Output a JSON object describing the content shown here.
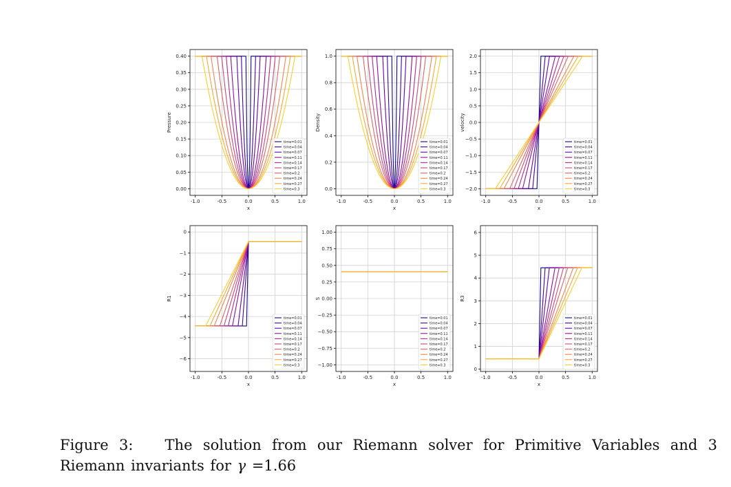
{
  "figure": {
    "legend_labels": [
      "time=0.01",
      "time=0.04",
      "time=0.07",
      "time=0.11",
      "time=0.14",
      "time=0.17",
      "time=0.2",
      "time=0.24",
      "time=0.27",
      "time=0.3"
    ],
    "times": [
      0.01,
      0.04,
      0.07,
      0.11,
      0.14,
      0.17,
      0.2,
      0.24,
      0.27,
      0.3
    ],
    "series_colors": [
      "#0d0887",
      "#41049d",
      "#6a00a8",
      "#8f0da4",
      "#b12a90",
      "#cc4778",
      "#e16462",
      "#f2844b",
      "#fca636",
      "#fcce25"
    ]
  },
  "chart_data": [
    {
      "type": "line",
      "id": "pressure",
      "xlabel": "x",
      "ylabel": "Pressure",
      "xlim": [
        -1.1,
        1.1
      ],
      "ylim": [
        -0.02,
        0.42
      ],
      "xticks": [
        "-1.0",
        "-0.5",
        "0.0",
        "0.5",
        "1.0"
      ],
      "yticks": [
        "0.00",
        "0.05",
        "0.10",
        "0.15",
        "0.20",
        "0.25",
        "0.30",
        "0.35",
        "0.40"
      ],
      "series_shape": "well",
      "low": 0.0,
      "high": 0.4,
      "grid": true,
      "legend": "lower-right"
    },
    {
      "type": "line",
      "id": "density",
      "xlabel": "x",
      "ylabel": "Density",
      "xlim": [
        -1.1,
        1.1
      ],
      "ylim": [
        -0.05,
        1.05
      ],
      "xticks": [
        "-1.0",
        "-0.5",
        "0.0",
        "0.5",
        "1.0"
      ],
      "yticks": [
        "0.0",
        "0.2",
        "0.4",
        "0.6",
        "0.8",
        "1.0"
      ],
      "series_shape": "well",
      "low": 0.0,
      "high": 1.0,
      "grid": true,
      "legend": "lower-right"
    },
    {
      "type": "line",
      "id": "velocity",
      "xlabel": "x",
      "ylabel": "velocity",
      "xlim": [
        -1.1,
        1.1
      ],
      "ylim": [
        -2.2,
        2.2
      ],
      "xticks": [
        "-1.0",
        "-0.5",
        "0.0",
        "0.5",
        "1.0"
      ],
      "yticks": [
        "−2.0",
        "−1.5",
        "−1.0",
        "−0.5",
        "0.0",
        "0.5",
        "1.0",
        "1.5",
        "2.0"
      ],
      "series_shape": "antisym",
      "left": -2.0,
      "right": 2.0,
      "grid": true,
      "legend": "lower-right"
    },
    {
      "type": "line",
      "id": "r1",
      "xlabel": "x",
      "ylabel": "R1",
      "xlim": [
        -1.1,
        1.1
      ],
      "ylim": [
        -6.6,
        0.3
      ],
      "xticks": [
        "-1.0",
        "-0.5",
        "0.0",
        "0.5",
        "1.0"
      ],
      "yticks": [
        "−6",
        "−5",
        "−4",
        "−3",
        "−2",
        "−1",
        "0"
      ],
      "series_shape": "left_fan",
      "left": -4.45,
      "right": -0.45,
      "grid": true,
      "legend": "lower-right"
    },
    {
      "type": "line",
      "id": "s",
      "xlabel": "x",
      "ylabel": "S",
      "xlim": [
        -1.1,
        1.1
      ],
      "ylim": [
        -1.1,
        1.1
      ],
      "xticks": [
        "-1.0",
        "-0.5",
        "0.0",
        "0.5",
        "1.0"
      ],
      "yticks": [
        "−1.00",
        "−0.75",
        "−0.50",
        "−0.25",
        "0.00",
        "0.25",
        "0.50",
        "0.75",
        "1.00"
      ],
      "series_shape": "constant",
      "value": 0.4,
      "grid": true,
      "legend": "lower-right"
    },
    {
      "type": "line",
      "id": "r3",
      "xlabel": "x",
      "ylabel": "R3",
      "xlim": [
        -1.1,
        1.1
      ],
      "ylim": [
        -0.1,
        6.3
      ],
      "xticks": [
        "-1.0",
        "-0.5",
        "0.0",
        "0.5",
        "1.0"
      ],
      "yticks": [
        "0",
        "1",
        "2",
        "3",
        "4",
        "5",
        "6"
      ],
      "series_shape": "right_fan",
      "left": 0.45,
      "right": 4.45,
      "grid": true,
      "legend": "lower-right"
    }
  ],
  "caption": {
    "label": "Figure 3:",
    "text": "The solution from our Riemann solver for Primitive Variables and 3 Riemann invariants for",
    "gamma_symbol": "γ",
    "gamma_value": " =1.66"
  }
}
